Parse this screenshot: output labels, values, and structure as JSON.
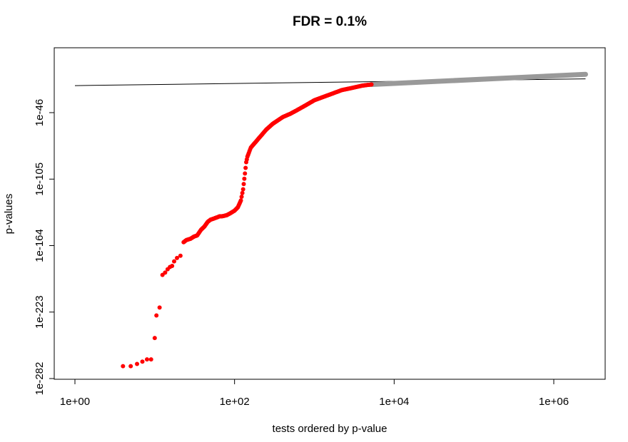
{
  "chart_data": {
    "type": "scatter",
    "title": "FDR = 0.1%",
    "xlabel": "tests ordered by p-value",
    "ylabel": "p-values",
    "x_scale": "log10",
    "y_scale": "log10",
    "xlim": [
      0.75,
      5000000
    ],
    "ylim": [
      1e-288,
      1.0
    ],
    "x_ticks": [
      1,
      100,
      10000,
      1000000
    ],
    "x_tick_labels": [
      "1e+00",
      "1e+02",
      "1e+04",
      "1e+06"
    ],
    "y_ticks": [
      1e-282,
      1e-223,
      1e-164,
      1e-105,
      1e-46
    ],
    "y_tick_labels": [
      "1e-282",
      "1e-223",
      "1e-164",
      "1e-105",
      "1e-46"
    ],
    "grid": false,
    "threshold_line": {
      "x": [
        1,
        2500000
      ],
      "log10_y": [
        -22,
        -16
      ]
    },
    "significant_color": "#ff0000",
    "nonsignificant_color": "#999999",
    "significant_points_log10": [
      [
        4,
        -271
      ],
      [
        5,
        -271
      ],
      [
        6,
        -269
      ],
      [
        7,
        -267
      ],
      [
        8,
        -265
      ],
      [
        9,
        -265
      ],
      [
        10,
        -246
      ],
      [
        10.5,
        -226
      ],
      [
        11.5,
        -219
      ],
      [
        12.5,
        -190
      ],
      [
        13.5,
        -188
      ],
      [
        14.5,
        -185
      ],
      [
        15.5,
        -183
      ],
      [
        16.5,
        -182
      ],
      [
        17.5,
        -178
      ],
      [
        19,
        -175
      ],
      [
        21,
        -173
      ],
      [
        23,
        -161
      ],
      [
        25,
        -159
      ],
      [
        28,
        -158
      ],
      [
        31,
        -156
      ],
      [
        34,
        -155
      ],
      [
        38,
        -150
      ],
      [
        42,
        -147
      ],
      [
        46,
        -143
      ],
      [
        50,
        -141
      ],
      [
        55,
        -140
      ],
      [
        60,
        -139
      ],
      [
        65,
        -138
      ],
      [
        70,
        -138
      ],
      [
        80,
        -137
      ],
      [
        90,
        -135
      ],
      [
        100,
        -133
      ],
      [
        110,
        -130
      ],
      [
        120,
        -124
      ],
      [
        128,
        -114
      ],
      [
        135,
        -100
      ],
      [
        140,
        -90
      ],
      [
        145,
        -85
      ],
      [
        160,
        -77
      ],
      [
        200,
        -69
      ],
      [
        250,
        -61
      ],
      [
        300,
        -56
      ],
      [
        400,
        -50
      ],
      [
        500,
        -47
      ],
      [
        600,
        -44
      ],
      [
        800,
        -39
      ],
      [
        1000,
        -35
      ],
      [
        1300,
        -32
      ],
      [
        1700,
        -29
      ],
      [
        2200,
        -26
      ],
      [
        3000,
        -24
      ],
      [
        4000,
        -22
      ],
      [
        5200,
        -21
      ]
    ],
    "nonsignificant_range": {
      "x_start": 5200,
      "x_end": 2500000,
      "log10_y_start": -21,
      "log10_y_end": -12
    }
  }
}
